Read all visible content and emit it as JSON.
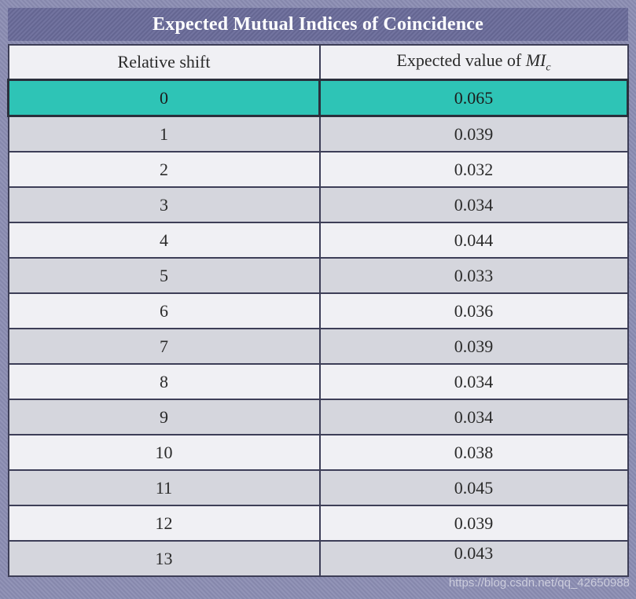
{
  "title": "Expected Mutual Indices of  Coincidence",
  "headers": {
    "shift": "Relative shift",
    "value_prefix": "Expected value of ",
    "value_symbol": "MI",
    "value_subscript": "c"
  },
  "rows": [
    {
      "shift": "0",
      "value": "0.065"
    },
    {
      "shift": "1",
      "value": "0.039"
    },
    {
      "shift": "2",
      "value": "0.032"
    },
    {
      "shift": "3",
      "value": "0.034"
    },
    {
      "shift": "4",
      "value": "0.044"
    },
    {
      "shift": "5",
      "value": "0.033"
    },
    {
      "shift": "6",
      "value": "0.036"
    },
    {
      "shift": "7",
      "value": "0.039"
    },
    {
      "shift": "8",
      "value": "0.034"
    },
    {
      "shift": "9",
      "value": "0.034"
    },
    {
      "shift": "10",
      "value": "0.038"
    },
    {
      "shift": "11",
      "value": "0.045"
    },
    {
      "shift": "12",
      "value": "0.039"
    },
    {
      "shift": "13",
      "value": "0.043"
    }
  ],
  "highlight_color": "#2ec4b6",
  "watermark": "https://blog.csdn.net/qq_42650988"
}
